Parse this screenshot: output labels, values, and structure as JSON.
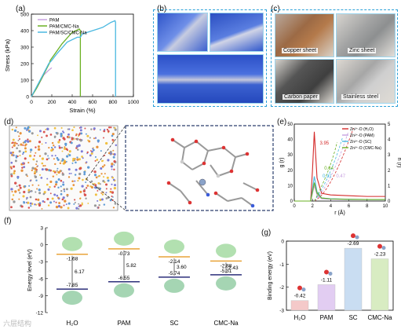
{
  "panels": {
    "a": "(a)",
    "b": "(b)",
    "c": "(c)",
    "d": "(d)",
    "e": "(e)",
    "f": "(f)",
    "g": "(g)"
  },
  "colors": {
    "pam": "#c8a2e0",
    "pam_cmc": "#6ab023",
    "pam_sc_cmc": "#4ab8e0",
    "dash_border": "#2aa0d8",
    "red": "#d42a2a",
    "orange": "#e9a43a",
    "navy": "#2c2f7a"
  },
  "panel_c": {
    "items": [
      "Copper sheet",
      "Zinc sheet",
      "Carbon paper",
      "Stainless steel"
    ]
  },
  "watermark": "六层结构",
  "chart_data": [
    {
      "panel": "a",
      "type": "line",
      "xlabel": "Strain (%)",
      "ylabel": "Stress (kPa)",
      "xlim": [
        0,
        1000
      ],
      "ylim": [
        0,
        500
      ],
      "xticks": [
        0,
        200,
        400,
        600,
        800,
        1000
      ],
      "yticks": [
        0,
        100,
        200,
        300,
        400,
        500
      ],
      "legend": "top-left",
      "series": [
        {
          "name": "PAM",
          "color": "#c8a2e0",
          "x": [
            0,
            60,
            120,
            170,
            200
          ],
          "y": [
            0,
            60,
            130,
            160,
            175
          ]
        },
        {
          "name": "PAM/CMC-Na",
          "color": "#6ab023",
          "x": [
            0,
            50,
            100,
            150,
            175,
            185,
            220,
            300,
            400,
            470,
            480,
            480
          ],
          "y": [
            0,
            50,
            110,
            170,
            200,
            220,
            250,
            320,
            390,
            410,
            400,
            0
          ]
        },
        {
          "name": "PAM/SC/CMC-Na",
          "color": "#4ab8e0",
          "x": [
            0,
            60,
            120,
            170,
            200,
            250,
            350,
            450,
            480,
            500,
            600,
            700,
            780,
            820,
            825,
            825
          ],
          "y": [
            0,
            70,
            140,
            200,
            220,
            260,
            330,
            360,
            360,
            380,
            400,
            420,
            450,
            460,
            450,
            0
          ]
        }
      ]
    },
    {
      "panel": "e",
      "type": "line",
      "xlabel": "r (Å)",
      "ylabel": "g (r)",
      "ylabel_right": "n (r)",
      "xlim": [
        0,
        10
      ],
      "ylim": [
        0,
        50
      ],
      "ylim_right": [
        0,
        5
      ],
      "xticks": [
        0,
        2,
        4,
        6,
        8,
        10
      ],
      "yticks": [
        0,
        10,
        20,
        30,
        40,
        50
      ],
      "yticks_right": [
        0,
        1,
        2,
        3,
        4,
        5
      ],
      "legend": "top-right",
      "annotations": [
        "3.95",
        "0.64",
        "0.31",
        "0.47"
      ],
      "series": [
        {
          "name": "Zn²⁺-O (H₂O)",
          "color": "#d42a2a",
          "x": [
            0,
            1.8,
            2.0,
            2.2,
            2.5,
            3.0,
            4.0,
            6.0,
            8.0,
            10.0
          ],
          "y": [
            0,
            0,
            20,
            45,
            15,
            5,
            4,
            3.5,
            3,
            3
          ]
        },
        {
          "name": "Zn²⁺-O (PAM)",
          "color": "#c8a2e0",
          "x": [
            0,
            1.8,
            2.0,
            2.2,
            2.5,
            3.0,
            4.0,
            6.0,
            8.0,
            10.0
          ],
          "y": [
            0,
            0,
            5,
            10,
            4,
            1.5,
            1.2,
            1.0,
            1.0,
            1.0
          ]
        },
        {
          "name": "Zn²⁺-O (SC)",
          "color": "#4ab8e0",
          "x": [
            0,
            1.8,
            2.0,
            2.2,
            2.5,
            3.0,
            4.0,
            6.0,
            8.0,
            10.0
          ],
          "y": [
            0,
            0,
            8,
            16,
            6,
            2,
            1.5,
            1.2,
            1.0,
            1.0
          ]
        },
        {
          "name": "Zn²⁺-O (CMC-Na)",
          "color": "#6ab023",
          "x": [
            0,
            1.8,
            2.0,
            2.2,
            2.5,
            3.0,
            4.0,
            6.0,
            8.0,
            10.0
          ],
          "y": [
            0,
            0,
            6,
            12,
            5,
            2,
            1.4,
            1.1,
            1.0,
            1.0
          ]
        }
      ]
    },
    {
      "panel": "f",
      "type": "bar",
      "ylabel": "Energy level (eV)",
      "ylim": [
        -12,
        3
      ],
      "yticks": [
        -12,
        -9,
        -6,
        -3,
        0,
        3
      ],
      "categories": [
        "H₂O",
        "PAM",
        "SC",
        "CMC-Na"
      ],
      "lumo": [
        -1.68,
        -0.73,
        -2.14,
        -2.88
      ],
      "homo": [
        -7.85,
        -6.55,
        -5.74,
        -5.31
      ],
      "gap": [
        6.17,
        5.82,
        3.6,
        2.43
      ]
    },
    {
      "panel": "g",
      "type": "bar",
      "ylabel": "Binding energy (eV)",
      "ylim": [
        -3,
        0
      ],
      "yticks": [
        -3,
        -2,
        -1,
        0
      ],
      "categories": [
        "H₂O",
        "PAM",
        "SC",
        "CMC-Na"
      ],
      "values": [
        -0.42,
        -1.11,
        -2.69,
        -2.23
      ],
      "colors": [
        "#f4c9c9",
        "#e2cdf2",
        "#c9ddf2",
        "#d8ecc2"
      ],
      "value_labels": [
        "-0.42",
        "-1.11",
        "-2.69",
        "-2.23"
      ]
    }
  ]
}
